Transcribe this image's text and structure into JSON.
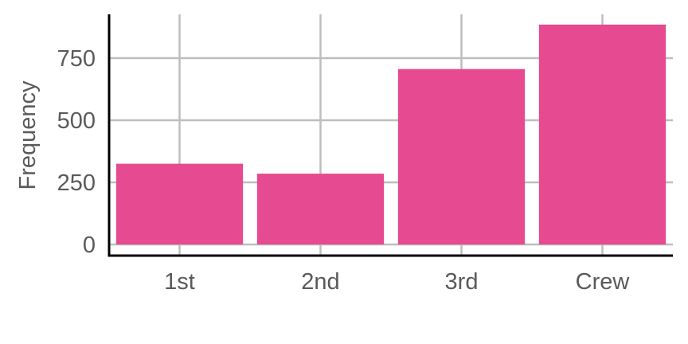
{
  "chart_data": {
    "type": "bar",
    "title": "",
    "xlabel": "",
    "ylabel": "Frequency",
    "categories": [
      "1st",
      "2nd",
      "3rd",
      "Crew"
    ],
    "values": [
      325,
      285,
      706,
      885
    ],
    "ylim": [
      0,
      925
    ],
    "yticks": [
      0,
      250,
      500,
      750
    ],
    "ytick_labels": [
      "0",
      "250",
      "500",
      "750"
    ],
    "grid": true,
    "bar_color": "#e64a90",
    "grid_color": "#bebebe",
    "axis_color": "#000000",
    "text_color": "#5a5a5a"
  }
}
